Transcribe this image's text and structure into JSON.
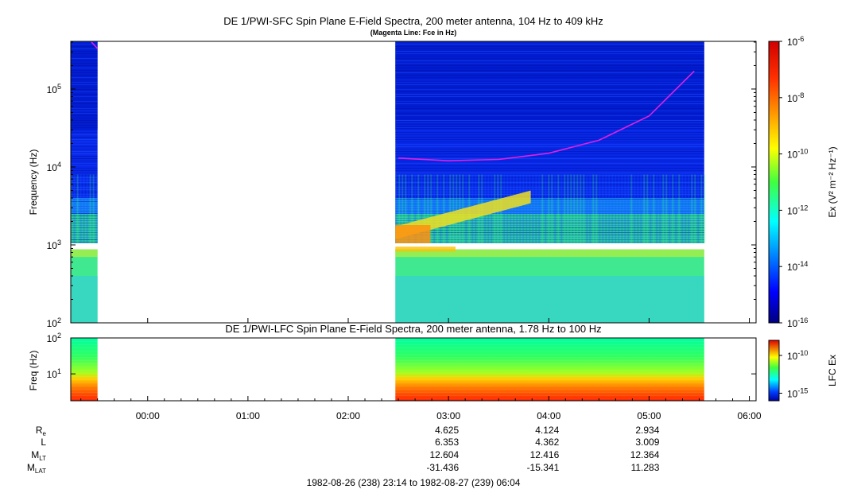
{
  "chart_data": [
    {
      "type": "heatmap",
      "title": "DE 1/PWI-SFC  Spin Plane E-Field Spectra, 200 meter antenna, 104 Hz to 409 kHz",
      "subtitle": "(Magenta Line: Fce in Hz)",
      "ylabel": "Frequency (Hz)",
      "yscale": "log",
      "ylim": [
        100,
        409000
      ],
      "yticks": [
        {
          "value": 100,
          "mant": "10",
          "exp": "2"
        },
        {
          "value": 1000,
          "mant": "10",
          "exp": "3"
        },
        {
          "value": 10000,
          "mant": "10",
          "exp": "4"
        },
        {
          "value": 100000,
          "mant": "10",
          "exp": "5"
        }
      ],
      "colorbar": {
        "label": "Ex (V² m⁻² Hz⁻¹)",
        "scale": "log",
        "range": [
          1e-16,
          1e-06
        ],
        "ticks": [
          {
            "value": 1e-16,
            "mant": "10",
            "exp": "-16"
          },
          {
            "value": 1e-14,
            "mant": "10",
            "exp": "-14"
          },
          {
            "value": 1e-12,
            "mant": "10",
            "exp": "-12"
          },
          {
            "value": 1e-10,
            "mant": "10",
            "exp": "-10"
          },
          {
            "value": 1e-08,
            "mant": "10",
            "exp": "-8"
          },
          {
            "value": 1e-06,
            "mant": "10",
            "exp": "-6"
          }
        ]
      },
      "data_intervals_hours": [
        [
          23.23,
          23.5
        ],
        [
          26.47,
          29.55
        ]
      ],
      "fce_line": {
        "color": "#e020e0",
        "points": [
          {
            "t": 23.44,
            "f": 400000
          },
          {
            "t": 26.5,
            "f": 13000
          },
          {
            "t": 27.0,
            "f": 12000
          },
          {
            "t": 27.5,
            "f": 12500
          },
          {
            "t": 28.0,
            "f": 15000
          },
          {
            "t": 28.5,
            "f": 22000
          },
          {
            "t": 29.0,
            "f": 45000
          },
          {
            "t": 29.45,
            "f": 170000
          }
        ]
      }
    },
    {
      "type": "heatmap",
      "title": "DE 1/PWI-LFC  Spin Plane E-Field Spectra, 200 meter antenna, 1.78 Hz to 100 Hz",
      "ylabel": "Freq (Hz)",
      "yscale": "log",
      "ylim": [
        1.78,
        100
      ],
      "yticks": [
        {
          "value": 10,
          "mant": "10",
          "exp": "1"
        },
        {
          "value": 100,
          "mant": "10",
          "exp": "2"
        }
      ],
      "colorbar": {
        "label": "LFC Ex",
        "scale": "log",
        "range": [
          1e-16,
          1e-08
        ],
        "ticks": [
          {
            "value": 1e-15,
            "mant": "10",
            "exp": "-15"
          },
          {
            "value": 1e-10,
            "mant": "10",
            "exp": "-10"
          }
        ]
      },
      "data_intervals_hours": [
        [
          23.23,
          23.5
        ],
        [
          26.47,
          29.55
        ]
      ]
    }
  ],
  "time_axis": {
    "range_hours": [
      23.233,
      30.067
    ],
    "ticks": [
      {
        "label": "00:00",
        "hours": 24
      },
      {
        "label": "01:00",
        "hours": 25
      },
      {
        "label": "02:00",
        "hours": 26
      },
      {
        "label": "03:00",
        "hours": 27
      },
      {
        "label": "04:00",
        "hours": 28
      },
      {
        "label": "05:00",
        "hours": 29
      },
      {
        "label": "06:00",
        "hours": 30
      }
    ]
  },
  "ephemeris": {
    "rows": [
      {
        "name": "R",
        "sub": "e",
        "values": [
          "4.625",
          "4.124",
          "2.934"
        ]
      },
      {
        "name": "L",
        "sub": "",
        "values": [
          "6.353",
          "4.362",
          "3.009"
        ]
      },
      {
        "name": "M",
        "sub": "LT",
        "values": [
          "12.604",
          "12.416",
          "12.364"
        ]
      },
      {
        "name": "M",
        "sub": "LAT",
        "values": [
          "-31.436",
          "-15.341",
          "11.283"
        ]
      }
    ],
    "columns_hours": [
      27,
      28,
      29
    ]
  },
  "footer": "1982-08-26 (238) 23:14 to 1982-08-27 (239) 06:04"
}
